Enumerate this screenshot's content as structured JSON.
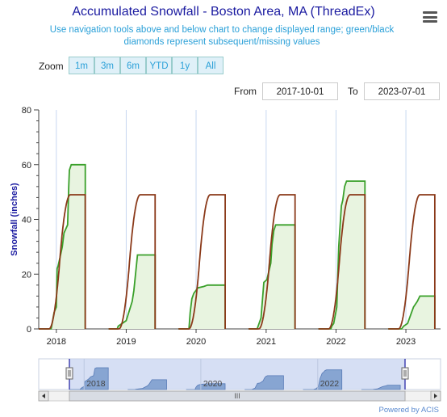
{
  "header": {
    "title": "Accumulated Snowfall - Boston Area, MA (ThreadEx)",
    "subtitle": "Use navigation tools above and below chart to change displayed range; green/black diamonds represent subsequent/missing values",
    "menu_icon": "hamburger-menu-icon"
  },
  "zoom": {
    "label": "Zoom",
    "buttons": [
      "1m",
      "3m",
      "6m",
      "YTD",
      "1y",
      "All"
    ]
  },
  "range": {
    "from_label": "From",
    "from_value": "2017-10-01",
    "to_label": "To",
    "to_value": "2023-07-01"
  },
  "navigator": {
    "year_labels": [
      "2018",
      "2020",
      "2022"
    ],
    "scroll_left_icon": "chevron-left-icon",
    "scroll_right_icon": "chevron-right-icon",
    "grip_icon": "grip-icon"
  },
  "credit": "Powered by ACIS",
  "colors": {
    "observed": "#3aa02a",
    "normal": "#8b3a1a",
    "fill": "#e8f4e0",
    "axis": "#1a1aa0"
  },
  "chart_data": {
    "type": "line",
    "title": "Accumulated Snowfall - Boston Area, MA (ThreadEx)",
    "ylabel": "Snowfall (inches)",
    "ylim": [
      0,
      80
    ],
    "yticks": [
      0,
      20,
      40,
      60,
      80
    ],
    "xrange": [
      "2017-10-01",
      "2023-07-01"
    ],
    "xtick_labels": [
      "2018",
      "2019",
      "2020",
      "2021",
      "2022",
      "2023"
    ],
    "grid": true,
    "series": [
      {
        "role": "observed",
        "seasons": [
          {
            "start": "2017-10-01",
            "end": "2018-06-01",
            "points": [
              [
                "2017-10-01",
                0
              ],
              [
                "2017-12-05",
                0
              ],
              [
                "2017-12-10",
                2
              ],
              [
                "2017-12-20",
                6
              ],
              [
                "2018-01-01",
                8
              ],
              [
                "2018-01-05",
                22
              ],
              [
                "2018-01-10",
                23
              ],
              [
                "2018-01-20",
                26
              ],
              [
                "2018-02-01",
                30
              ],
              [
                "2018-02-10",
                35
              ],
              [
                "2018-03-01",
                38
              ],
              [
                "2018-03-07",
                52
              ],
              [
                "2018-03-10",
                58
              ],
              [
                "2018-03-20",
                60
              ],
              [
                "2018-04-10",
                60
              ],
              [
                "2018-06-01",
                60
              ]
            ]
          },
          {
            "start": "2018-10-01",
            "end": "2019-06-01",
            "points": [
              [
                "2018-10-01",
                0
              ],
              [
                "2018-11-15",
                0
              ],
              [
                "2018-11-20",
                1
              ],
              [
                "2019-01-01",
                3
              ],
              [
                "2019-02-01",
                10
              ],
              [
                "2019-02-10",
                14
              ],
              [
                "2019-03-01",
                27
              ],
              [
                "2019-04-01",
                27
              ],
              [
                "2019-06-01",
                27
              ]
            ]
          },
          {
            "start": "2019-10-01",
            "end": "2020-06-01",
            "points": [
              [
                "2019-10-01",
                0
              ],
              [
                "2019-11-25",
                0
              ],
              [
                "2019-12-01",
                6
              ],
              [
                "2019-12-10",
                11
              ],
              [
                "2019-12-20",
                13
              ],
              [
                "2020-01-10",
                15
              ],
              [
                "2020-02-10",
                15.5
              ],
              [
                "2020-03-01",
                16
              ],
              [
                "2020-06-01",
                16
              ]
            ]
          },
          {
            "start": "2020-10-01",
            "end": "2021-06-01",
            "points": [
              [
                "2020-10-01",
                0
              ],
              [
                "2020-11-15",
                0
              ],
              [
                "2020-12-05",
                4
              ],
              [
                "2020-12-20",
                17
              ],
              [
                "2021-01-05",
                18
              ],
              [
                "2021-01-25",
                24
              ],
              [
                "2021-02-01",
                31
              ],
              [
                "2021-02-10",
                36
              ],
              [
                "2021-02-20",
                38
              ],
              [
                "2021-03-15",
                38
              ],
              [
                "2021-06-01",
                38
              ]
            ]
          },
          {
            "start": "2021-10-01",
            "end": "2022-06-01",
            "points": [
              [
                "2021-10-01",
                0
              ],
              [
                "2021-12-05",
                0
              ],
              [
                "2021-12-10",
                1
              ],
              [
                "2021-12-20",
                2
              ],
              [
                "2022-01-05",
                8
              ],
              [
                "2022-01-15",
                30
              ],
              [
                "2022-01-29",
                45
              ],
              [
                "2022-02-05",
                47
              ],
              [
                "2022-02-15",
                52
              ],
              [
                "2022-02-25",
                54
              ],
              [
                "2022-03-15",
                54
              ],
              [
                "2022-06-01",
                54
              ]
            ]
          },
          {
            "start": "2022-10-01",
            "end": "2023-06-01",
            "points": [
              [
                "2022-10-01",
                0
              ],
              [
                "2022-12-10",
                0
              ],
              [
                "2022-12-20",
                1
              ],
              [
                "2023-01-10",
                2
              ],
              [
                "2023-01-20",
                4
              ],
              [
                "2023-02-10",
                8
              ],
              [
                "2023-03-01",
                10
              ],
              [
                "2023-03-15",
                12
              ],
              [
                "2023-04-01",
                12
              ],
              [
                "2023-06-01",
                12
              ]
            ]
          }
        ]
      },
      {
        "role": "normal",
        "seasons": [
          {
            "start": "2017-10-01",
            "end": "2018-06-01",
            "peak": 49
          },
          {
            "start": "2018-10-01",
            "end": "2019-06-01",
            "peak": 49
          },
          {
            "start": "2019-10-01",
            "end": "2020-06-01",
            "peak": 49
          },
          {
            "start": "2020-10-01",
            "end": "2021-06-01",
            "peak": 49
          },
          {
            "start": "2021-10-01",
            "end": "2022-06-01",
            "peak": 49
          },
          {
            "start": "2022-10-01",
            "end": "2023-06-01",
            "peak": 49
          }
        ]
      }
    ]
  }
}
